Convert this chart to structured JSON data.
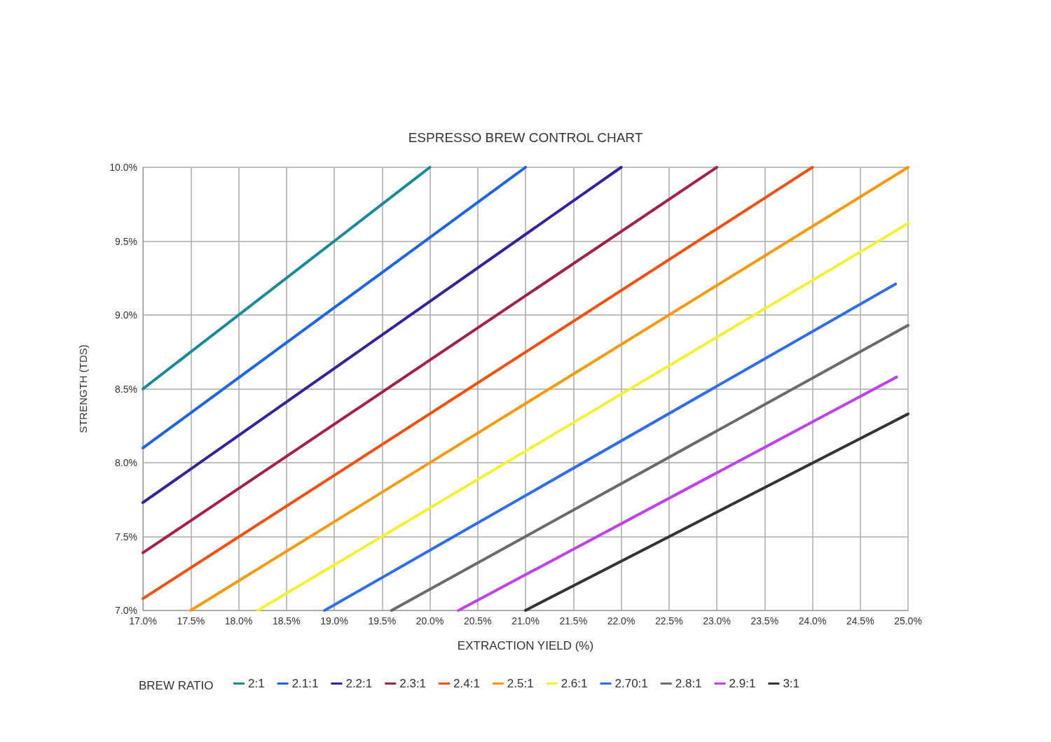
{
  "chart_data": {
    "type": "line",
    "title": "ESPRESSO BREW CONTROL CHART",
    "xlabel": "EXTRACTION YIELD (%)",
    "ylabel": "STRENGTH (TDS)",
    "legend_title": "BREW RATIO",
    "xlim": [
      17,
      25
    ],
    "ylim": [
      7,
      10
    ],
    "xticks": [
      {
        "value": 17,
        "label": "17.0%"
      },
      {
        "value": 17.5,
        "label": "17.5%"
      },
      {
        "value": 18,
        "label": "18.0%"
      },
      {
        "value": 18.5,
        "label": "18.5%"
      },
      {
        "value": 19,
        "label": "19.0%"
      },
      {
        "value": 19.5,
        "label": "19.5%"
      },
      {
        "value": 20,
        "label": "20.0%"
      },
      {
        "value": 20.5,
        "label": "20.5%"
      },
      {
        "value": 21,
        "label": "21.0%"
      },
      {
        "value": 21.5,
        "label": "21.5%"
      },
      {
        "value": 22,
        "label": "22.0%"
      },
      {
        "value": 22.5,
        "label": "22.5%"
      },
      {
        "value": 23,
        "label": "23.0%"
      },
      {
        "value": 23.5,
        "label": "23.5%"
      },
      {
        "value": 24,
        "label": "24.0%"
      },
      {
        "value": 24.5,
        "label": "24.5%"
      },
      {
        "value": 25,
        "label": "25.0%"
      }
    ],
    "yticks": [
      {
        "value": 7,
        "label": "7.0%"
      },
      {
        "value": 7.5,
        "label": "7.5%"
      },
      {
        "value": 8,
        "label": "8.0%"
      },
      {
        "value": 8.5,
        "label": "8.5%"
      },
      {
        "value": 9,
        "label": "9.0%"
      },
      {
        "value": 9.5,
        "label": "9.5%"
      },
      {
        "value": 10,
        "label": "10.0%"
      }
    ],
    "grid": true,
    "legend": "bottom",
    "line_style": "solid",
    "series": [
      {
        "name": "2:1",
        "color": "#1a8a9a",
        "x": [
          17,
          20
        ],
        "values": [
          8.5,
          10
        ]
      },
      {
        "name": "2.1:1",
        "color": "#1e64e6",
        "x": [
          17,
          21
        ],
        "values": [
          8.1,
          10
        ]
      },
      {
        "name": "2.2:1",
        "color": "#3a1e9c",
        "x": [
          17,
          22
        ],
        "values": [
          7.73,
          10
        ]
      },
      {
        "name": "2.3:1",
        "color": "#a3204a",
        "x": [
          17,
          23
        ],
        "values": [
          7.39,
          10
        ]
      },
      {
        "name": "2.4:1",
        "color": "#f24f10",
        "x": [
          17,
          24
        ],
        "values": [
          7.08,
          10
        ]
      },
      {
        "name": "2.5:1",
        "color": "#f79a10",
        "x": [
          17.5,
          25
        ],
        "values": [
          7,
          10
        ]
      },
      {
        "name": "2.6:1",
        "color": "#f5f032",
        "x": [
          18.2,
          25
        ],
        "values": [
          7,
          9.62
        ]
      },
      {
        "name": "2.70:1",
        "color": "#2e6cf0",
        "x": [
          18.9,
          24.87
        ],
        "values": [
          7,
          9.21
        ]
      },
      {
        "name": "2.8:1",
        "color": "#6a6a6a",
        "x": [
          19.6,
          25
        ],
        "values": [
          7,
          8.93
        ]
      },
      {
        "name": "2.9:1",
        "color": "#c040f0",
        "x": [
          20.3,
          24.88
        ],
        "values": [
          7,
          8.58
        ]
      },
      {
        "name": "3:1",
        "color": "#333333",
        "x": [
          21,
          25
        ],
        "values": [
          7,
          8.33
        ]
      }
    ]
  }
}
